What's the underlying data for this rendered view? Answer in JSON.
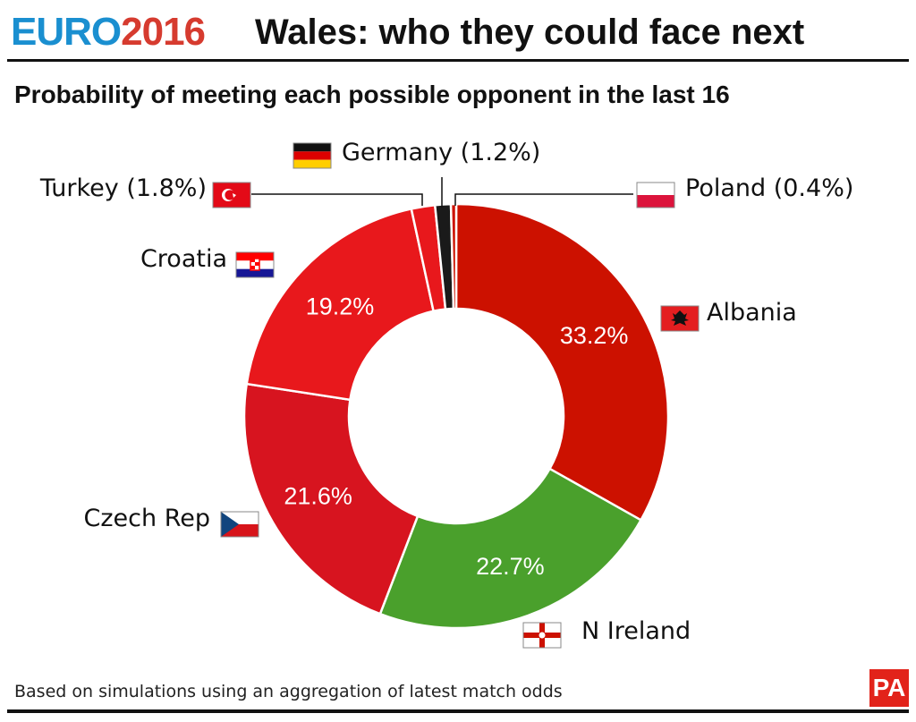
{
  "header": {
    "logo_euro": "EURO",
    "logo_year": "2016",
    "title": "Wales: who they could face next",
    "subtitle": "Probability of meeting each possible opponent in the last 16"
  },
  "footer": {
    "note": "Based on simulations using an aggregation of latest match odds",
    "brand": "PA"
  },
  "chart_data": {
    "type": "pie",
    "donut": true,
    "title": "Probability of meeting each possible opponent in the last 16",
    "unit": "%",
    "slices": [
      {
        "name": "Albania",
        "value": 33.2,
        "label": "33.2%",
        "legend": "Albania",
        "color": "#cc1100",
        "flag": "Albania"
      },
      {
        "name": "N Ireland",
        "value": 22.7,
        "label": "22.7%",
        "legend": "N Ireland",
        "color": "#4aa02c",
        "flag": "Northern Ireland"
      },
      {
        "name": "Czech Rep",
        "value": 21.6,
        "label": "21.6%",
        "legend": "Czech Rep",
        "color": "#d7141f",
        "flag": "Czech Republic"
      },
      {
        "name": "Croatia",
        "value": 19.2,
        "label": "19.2%",
        "legend": "Croatia",
        "color": "#e8181c",
        "flag": "Croatia"
      },
      {
        "name": "Turkey",
        "value": 1.8,
        "label": "",
        "legend": "Turkey (1.8%)",
        "color": "#e8181c",
        "flag": "Turkey"
      },
      {
        "name": "Germany",
        "value": 1.2,
        "label": "",
        "legend": "Germany (1.2%)",
        "color": "#1a1a1a",
        "flag": "Germany"
      },
      {
        "name": "Poland",
        "value": 0.4,
        "label": "",
        "legend": "Poland (0.4%)",
        "color": "#cc1100",
        "flag": "Poland"
      }
    ]
  }
}
